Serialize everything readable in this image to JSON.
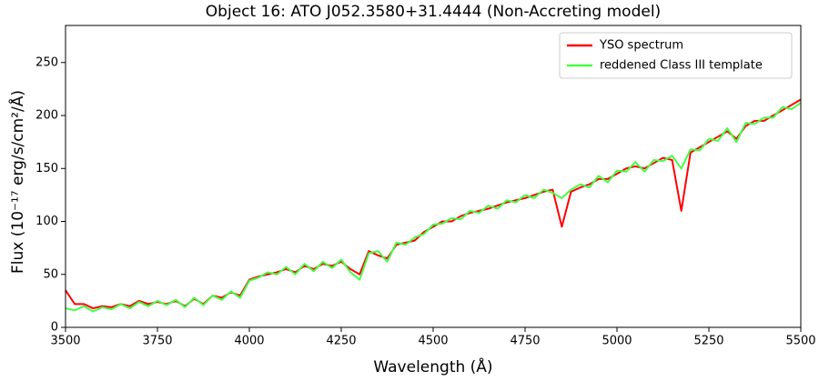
{
  "chart_data": {
    "type": "line",
    "title": "Object 16: ATO J052.3580+31.4444 (Non-Accreting model)",
    "xlabel": "Wavelength (Å)",
    "ylabel": "Flux (10⁻¹⁷ erg/s/cm²/Å)",
    "x": [
      3500,
      3525,
      3550,
      3575,
      3600,
      3625,
      3650,
      3675,
      3700,
      3725,
      3750,
      3775,
      3800,
      3825,
      3850,
      3875,
      3900,
      3925,
      3950,
      3975,
      4000,
      4025,
      4050,
      4075,
      4100,
      4125,
      4150,
      4175,
      4200,
      4225,
      4250,
      4275,
      4300,
      4325,
      4350,
      4375,
      4400,
      4425,
      4450,
      4475,
      4500,
      4525,
      4550,
      4575,
      4600,
      4625,
      4650,
      4675,
      4700,
      4725,
      4750,
      4775,
      4800,
      4825,
      4850,
      4875,
      4900,
      4925,
      4950,
      4975,
      5000,
      5025,
      5050,
      5075,
      5100,
      5125,
      5150,
      5175,
      5200,
      5225,
      5250,
      5275,
      5300,
      5325,
      5350,
      5375,
      5400,
      5425,
      5450,
      5475,
      5500
    ],
    "series": [
      {
        "name": "YSO spectrum",
        "color": "#ff0000",
        "values": [
          35,
          22,
          22,
          18,
          20,
          19,
          22,
          20,
          25,
          22,
          24,
          22,
          25,
          20,
          27,
          22,
          30,
          28,
          33,
          30,
          45,
          48,
          50,
          52,
          55,
          52,
          58,
          55,
          60,
          58,
          62,
          55,
          50,
          72,
          68,
          65,
          78,
          80,
          82,
          90,
          95,
          100,
          100,
          105,
          108,
          110,
          112,
          115,
          118,
          120,
          122,
          125,
          128,
          130,
          95,
          128,
          132,
          135,
          140,
          140,
          145,
          150,
          152,
          150,
          155,
          160,
          158,
          110,
          165,
          170,
          175,
          180,
          185,
          178,
          190,
          195,
          195,
          200,
          205,
          210,
          215
        ]
      },
      {
        "name": "reddened Class III template",
        "color": "#44ff44",
        "values": [
          18,
          16,
          20,
          15,
          19,
          17,
          22,
          18,
          24,
          20,
          25,
          21,
          26,
          19,
          28,
          21,
          30,
          26,
          34,
          28,
          44,
          47,
          52,
          50,
          57,
          50,
          60,
          53,
          62,
          56,
          64,
          52,
          45,
          70,
          72,
          62,
          80,
          78,
          85,
          88,
          97,
          98,
          103,
          102,
          110,
          108,
          115,
          112,
          120,
          118,
          125,
          122,
          130,
          127,
          122,
          130,
          135,
          132,
          143,
          137,
          148,
          147,
          156,
          147,
          158,
          157,
          162,
          150,
          168,
          167,
          178,
          176,
          188,
          175,
          193,
          192,
          198,
          198,
          208,
          206,
          212
        ]
      }
    ],
    "xlim": [
      3500,
      5500
    ],
    "xticks": [
      3500,
      3750,
      4000,
      4250,
      4500,
      4750,
      5000,
      5250,
      5500
    ],
    "ylim": [
      0,
      285
    ],
    "yticks": [
      0,
      50,
      100,
      150,
      200,
      250
    ],
    "legend": "upper right"
  }
}
